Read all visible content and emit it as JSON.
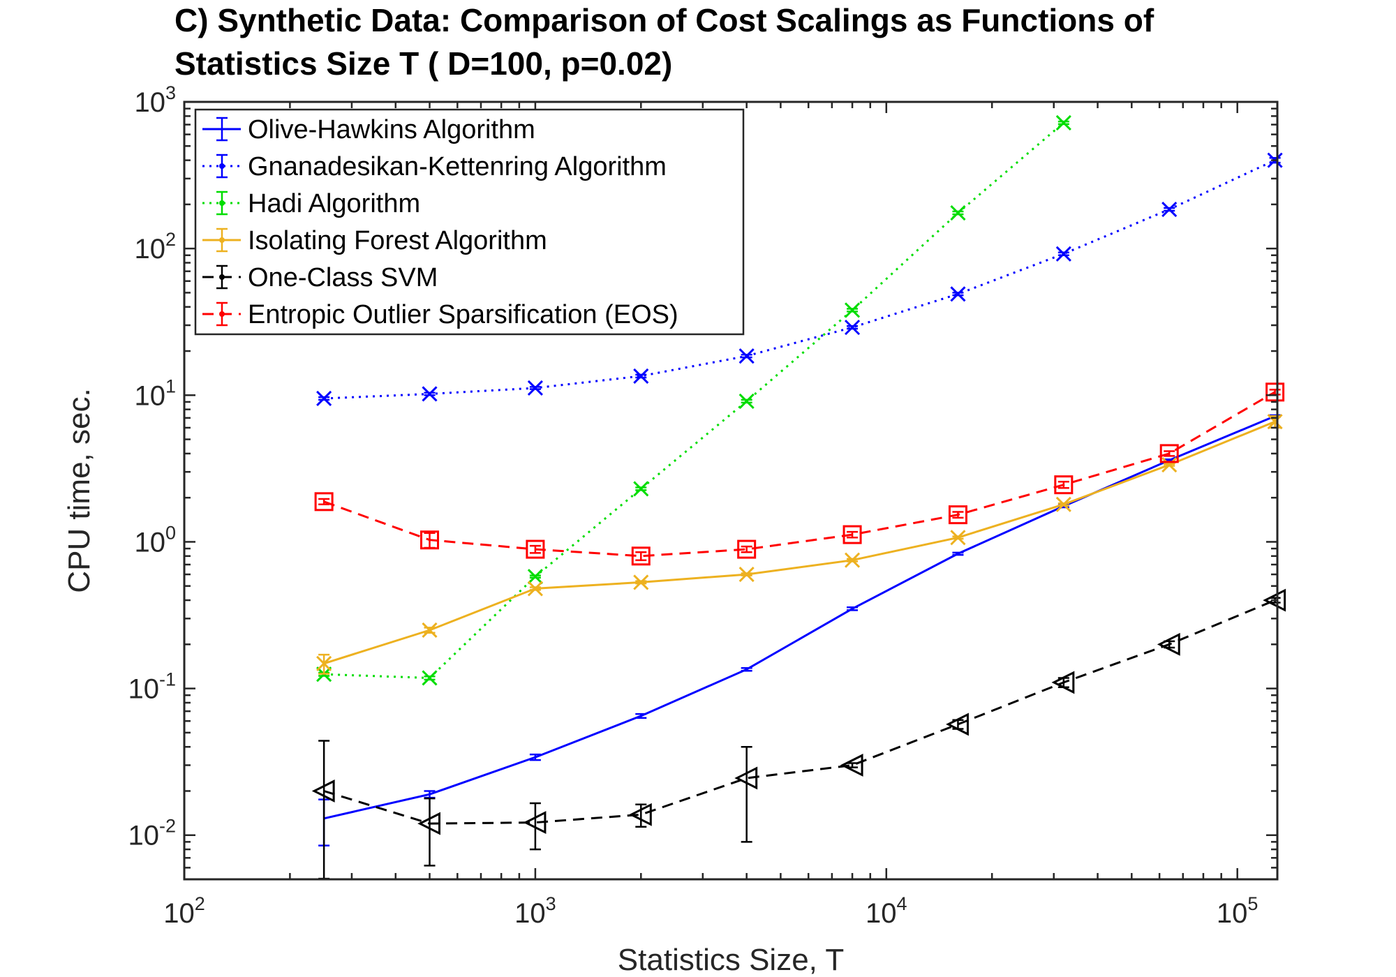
{
  "chart_data": {
    "type": "line",
    "title": "C) Synthetic Data: Comparison of Cost Scalings as Functions of Statistics Size T ( D=100, p=0.02)",
    "title_lines": [
      "C) Synthetic Data: Comparison of Cost Scalings as Functions of",
      "Statistics Size T ( D=100, p=0.02)"
    ],
    "xlabel": "Statistics Size, T",
    "ylabel": "CPU time, sec.",
    "xscale": "log",
    "yscale": "log",
    "xlim": [
      100,
      130000
    ],
    "ylim": [
      0.005,
      1000
    ],
    "x_ticks": [
      {
        "base": "10",
        "exp": "2",
        "value": 100
      },
      {
        "base": "10",
        "exp": "3",
        "value": 1000
      },
      {
        "base": "10",
        "exp": "4",
        "value": 10000
      },
      {
        "base": "10",
        "exp": "5",
        "value": 100000
      }
    ],
    "y_ticks": [
      {
        "base": "10",
        "exp": "-2",
        "value": 0.01
      },
      {
        "base": "10",
        "exp": "-1",
        "value": 0.1
      },
      {
        "base": "10",
        "exp": "0",
        "value": 1
      },
      {
        "base": "10",
        "exp": "1",
        "value": 10
      },
      {
        "base": "10",
        "exp": "2",
        "value": 100
      },
      {
        "base": "10",
        "exp": "3",
        "value": 1000
      }
    ],
    "legend_position": "top-left",
    "grid": false,
    "series": [
      {
        "name": "Olive-Hawkins Algorithm",
        "color": "#0000ff",
        "dash": "solid",
        "marker": "none",
        "x": [
          250,
          500,
          1000,
          2000,
          4000,
          8000,
          16000,
          32000,
          64000,
          128000
        ],
        "y": [
          0.013,
          0.019,
          0.034,
          0.065,
          0.135,
          0.35,
          0.83,
          1.75,
          3.6,
          7.2
        ],
        "err": [
          0.0045,
          0.001,
          0.0015,
          0.002,
          0.003,
          0.008,
          0.015,
          0.03,
          0.05,
          0.1
        ]
      },
      {
        "name": "Gnanadesikan-Kettenring Algorithm",
        "color": "#0000ff",
        "dash": "dotted",
        "marker": "x",
        "x": [
          250,
          500,
          1000,
          2000,
          4000,
          8000,
          16000,
          32000,
          64000,
          128000
        ],
        "y": [
          9.5,
          10.2,
          11.2,
          13.5,
          18.5,
          29,
          49,
          92,
          185,
          400
        ],
        "err": [
          0.2,
          0.2,
          0.2,
          0.3,
          0.4,
          0.6,
          1,
          2,
          4,
          15
        ]
      },
      {
        "name": "Hadi Algorithm",
        "color": "#00dd00",
        "dash": "dotted",
        "marker": "x",
        "x": [
          250,
          500,
          1000,
          2000,
          4000,
          8000,
          16000,
          32000
        ],
        "y": [
          0.125,
          0.118,
          0.58,
          2.3,
          9.1,
          38,
          175,
          720
        ],
        "err": [
          0.003,
          0.003,
          0.01,
          0.05,
          0.2,
          0.8,
          4,
          15
        ]
      },
      {
        "name": "Isolating Forest Algorithm",
        "color": "#edb120",
        "dash": "solid",
        "marker": "x",
        "x": [
          250,
          500,
          1000,
          2000,
          4000,
          8000,
          16000,
          32000,
          64000,
          128000
        ],
        "y": [
          0.148,
          0.25,
          0.48,
          0.53,
          0.6,
          0.75,
          1.07,
          1.8,
          3.35,
          6.6
        ],
        "err": [
          0.022,
          0.01,
          0.01,
          0.01,
          0.01,
          0.015,
          0.02,
          0.03,
          0.05,
          0.6
        ]
      },
      {
        "name": "One-Class SVM",
        "color": "#000000",
        "dash": "dashed",
        "marker": "triangle-left",
        "x": [
          250,
          500,
          1000,
          2000,
          4000,
          8000,
          16000,
          32000,
          64000,
          128000
        ],
        "y": [
          0.02,
          0.012,
          0.0122,
          0.0138,
          0.0245,
          0.03,
          0.057,
          0.11,
          0.2,
          0.4
        ],
        "err_low": [
          0.02,
          0.0058,
          0.0042,
          0.0024,
          0.0155,
          0.001,
          0.004,
          0.008,
          0.01,
          0.015
        ],
        "err_high": [
          0.024,
          0.0058,
          0.0043,
          0.0024,
          0.0155,
          0.001,
          0.004,
          0.008,
          0.01,
          0.015
        ]
      },
      {
        "name": "Entropic Outlier Sparsification (EOS)",
        "color": "#ff0000",
        "dash": "dashed",
        "marker": "square",
        "x": [
          250,
          500,
          1000,
          2000,
          4000,
          8000,
          16000,
          32000,
          64000,
          128000
        ],
        "y": [
          1.88,
          1.03,
          0.89,
          0.8,
          0.89,
          1.12,
          1.53,
          2.45,
          4.0,
          10.5
        ],
        "err": [
          0.08,
          0.12,
          0.05,
          0.05,
          0.04,
          0.05,
          0.07,
          0.12,
          0.15,
          0.4
        ]
      }
    ]
  }
}
